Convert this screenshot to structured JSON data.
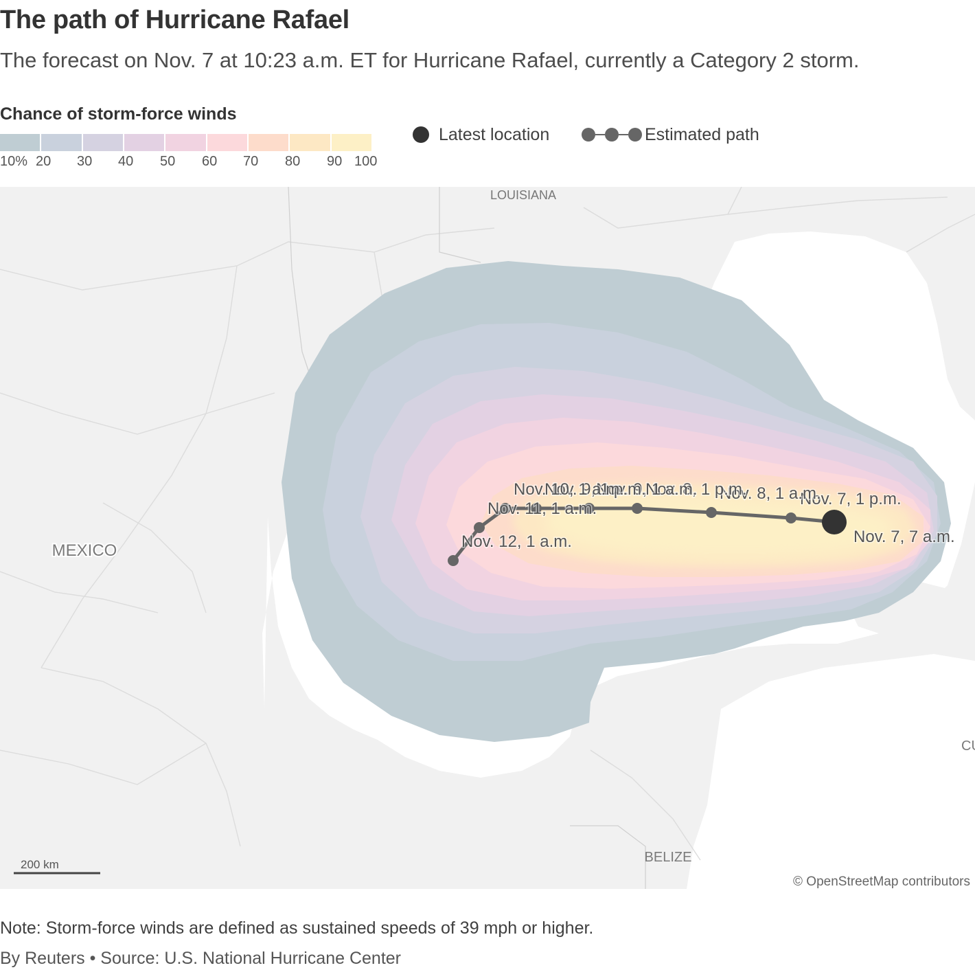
{
  "header": {
    "title": "The path of Hurricane Rafael",
    "subtitle": "The forecast on Nov. 7 at 10:23 a.m. ET for Hurricane Rafael, currently a Category 2 storm."
  },
  "legend": {
    "scale_title": "Chance of storm-force winds",
    "ticks": [
      "10%",
      "20",
      "30",
      "40",
      "50",
      "60",
      "70",
      "80",
      "90",
      "100"
    ],
    "colors": [
      "#bfcdd3",
      "#c9d1dd",
      "#d5d2e1",
      "#e3d1e3",
      "#f1d3e1",
      "#fcd9dc",
      "#fddccb",
      "#fde8c4",
      "#fdf0c6"
    ],
    "latest_location_label": "Latest location",
    "estimated_path_label": "Estimated path"
  },
  "map": {
    "labels": {
      "louisiana": "LOUISIANA",
      "mexico": "MEXICO",
      "belize": "BELIZE",
      "cuba_partial": "CU"
    },
    "track_labels": [
      "Nov. 7, 7 a.m.",
      "Nov. 7, 1 p.m.",
      "Nov. 8, 1 a.m.",
      "Nov. 8, 1 p.m.",
      "Nov. 9, 1 a.m.",
      "Nov. 9, 1 p.m.",
      "Nov. 10, 1 a.m.",
      "Nov. 11, 1 a.m.",
      "Nov. 12, 1 a.m."
    ],
    "scale_bar": "200 km",
    "attribution": "© OpenStreetMap contributors",
    "colors": {
      "land": "#f1f1f1",
      "water": "#ffffff",
      "track": "#666666",
      "latest_dot": "#333333"
    }
  },
  "footer": {
    "note": "Note: Storm-force winds are defined as sustained speeds of 39 mph or higher.",
    "credit": "By Reuters • Source: U.S. National Hurricane Center"
  }
}
